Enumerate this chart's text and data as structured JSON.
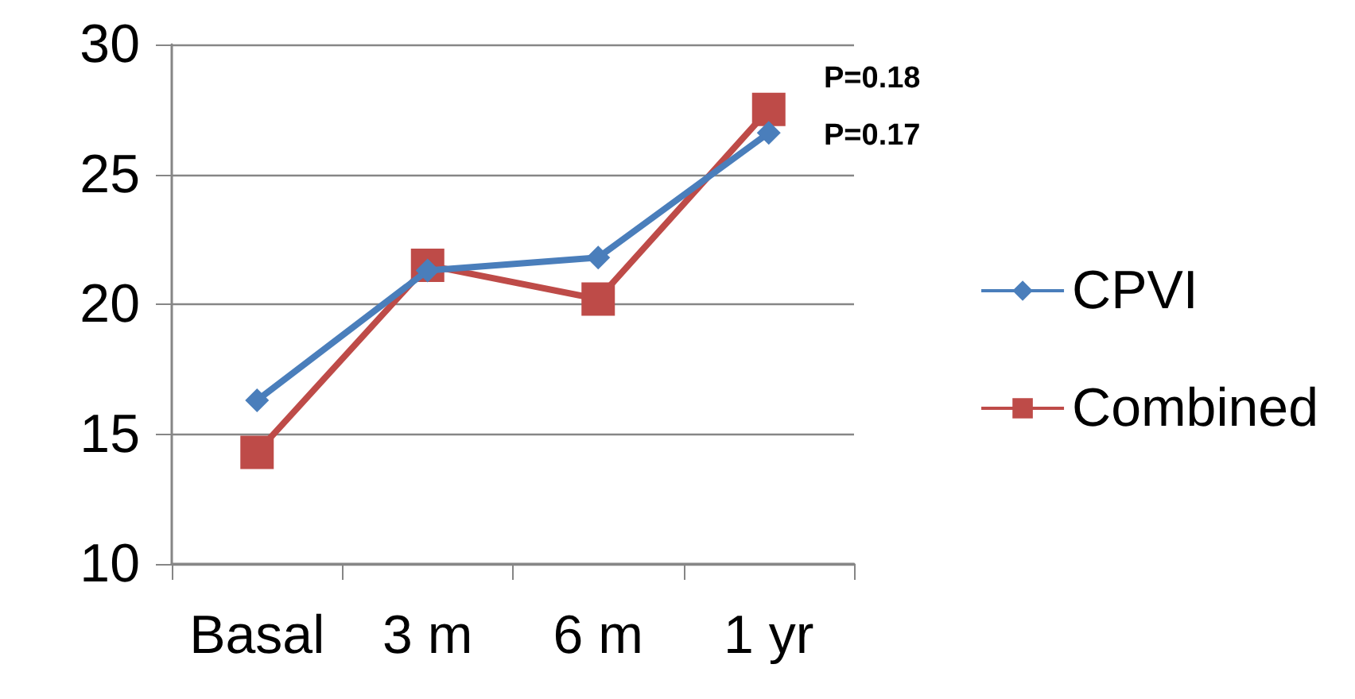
{
  "chart_data": {
    "type": "line",
    "categories": [
      "Basal",
      "3 m",
      "6 m",
      "1 yr"
    ],
    "series": [
      {
        "name": "CPVI",
        "color": "#4a7ebb",
        "values": [
          16.3,
          21.3,
          21.8,
          26.6
        ],
        "marker": "diamond"
      },
      {
        "name": "Combined",
        "color": "#be4b48",
        "values": [
          14.3,
          21.5,
          20.2,
          27.5
        ],
        "marker": "square"
      }
    ],
    "ylim": [
      10,
      30
    ],
    "yticks": [
      10,
      15,
      20,
      25,
      30
    ],
    "grid": "y",
    "legend": "right",
    "line_style": "solid",
    "annotations": [
      "P=0.18",
      "P=0.17"
    ]
  }
}
